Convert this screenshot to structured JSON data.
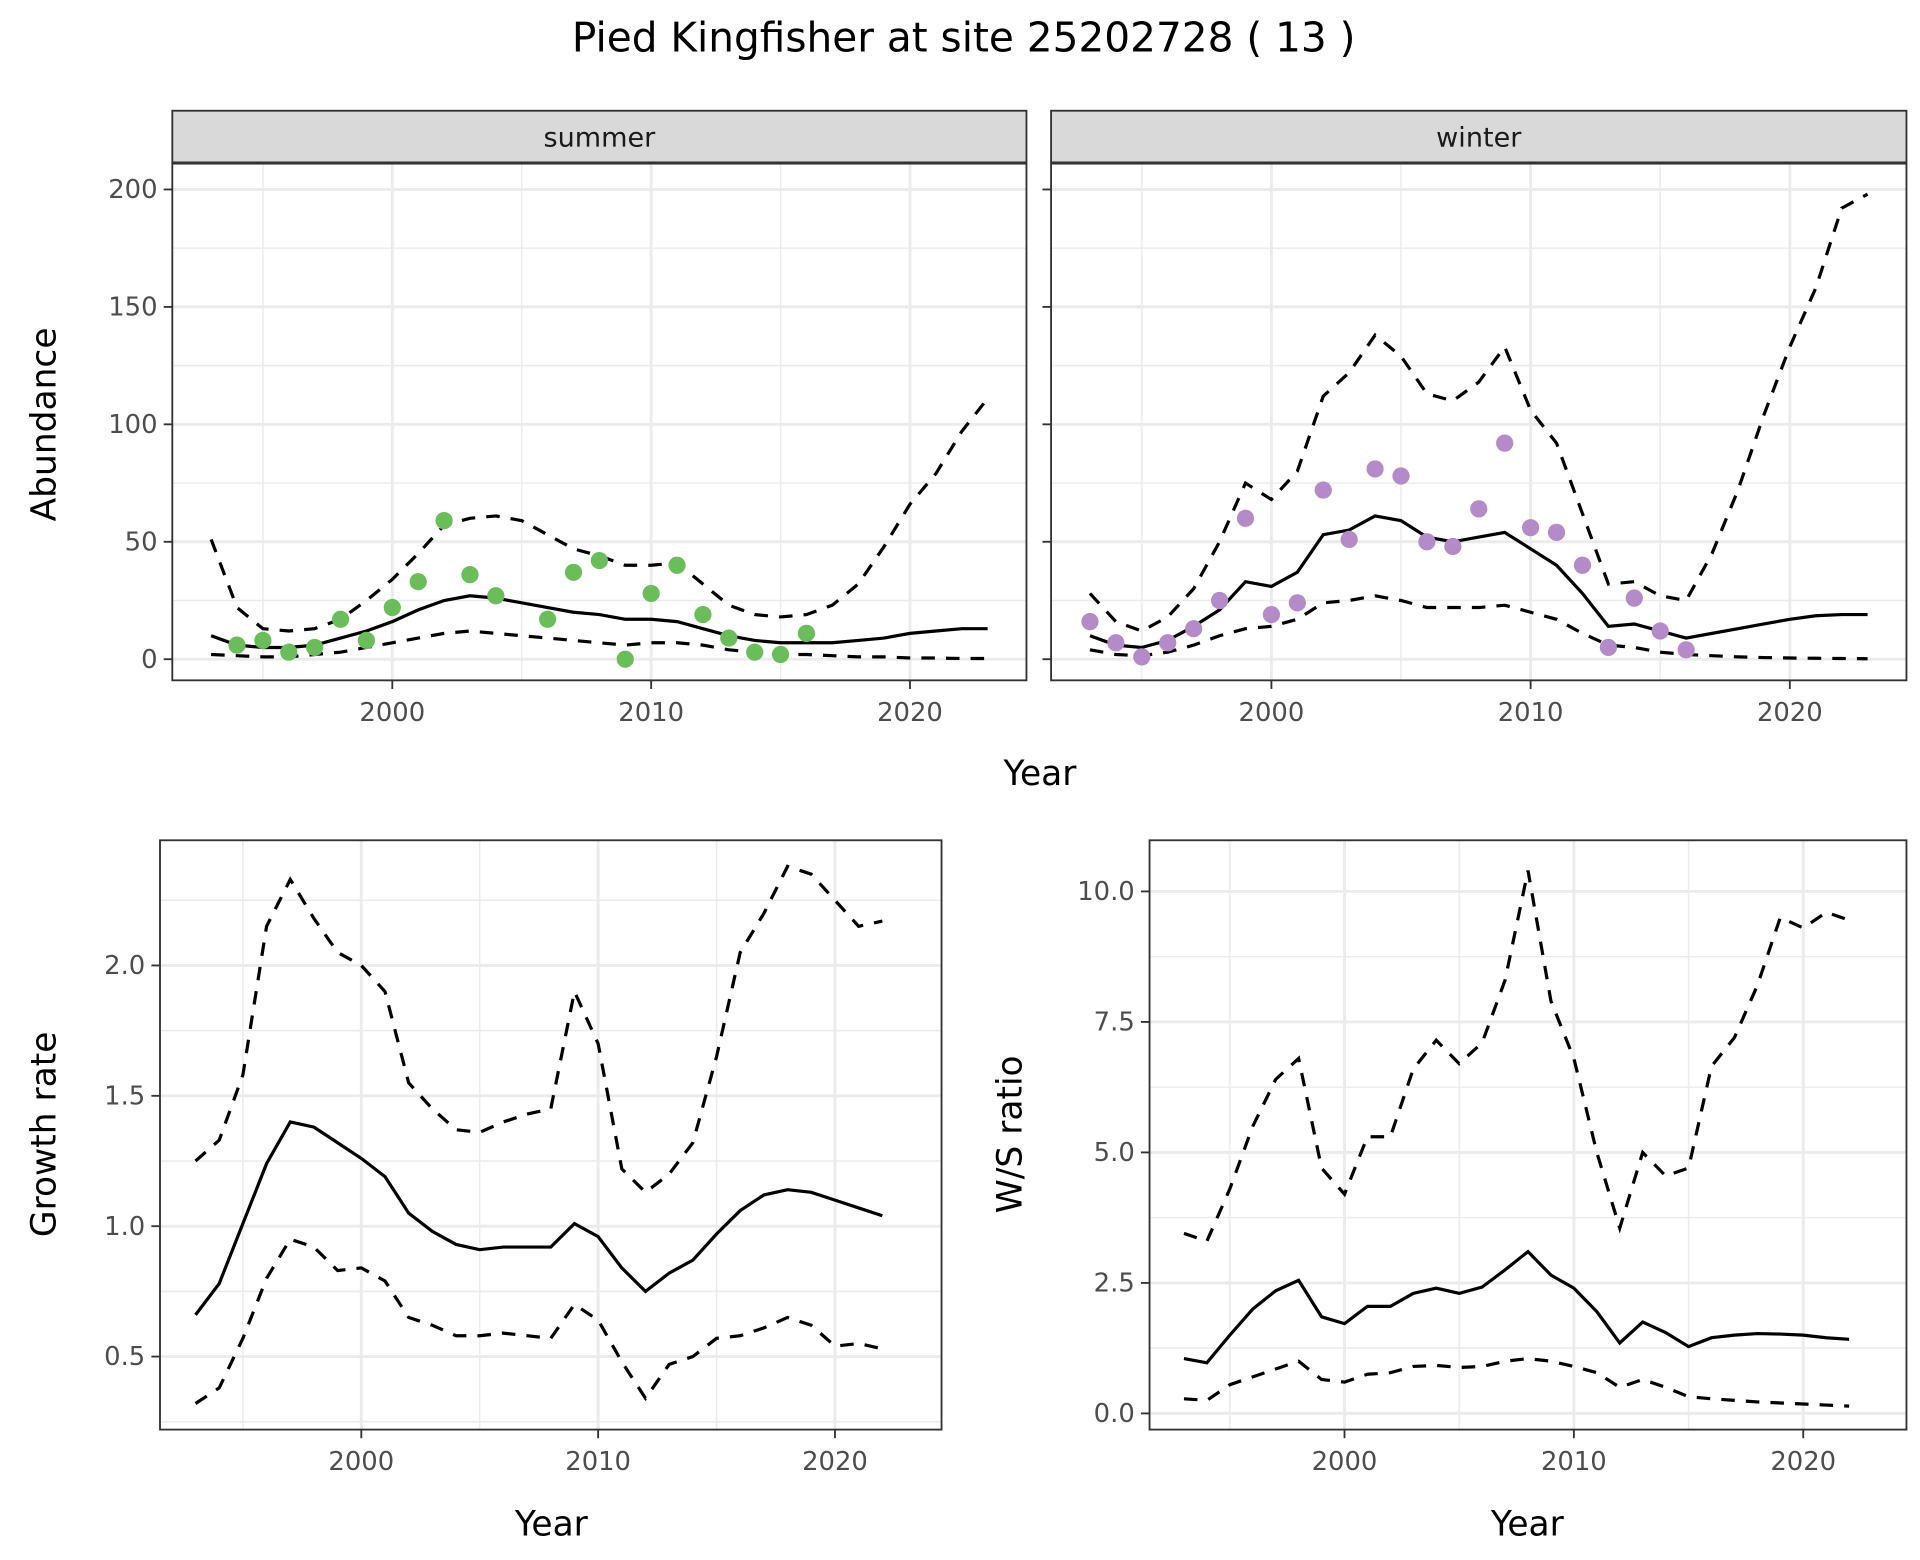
{
  "title": "Pied Kingfisher at site 25202728 ( 13 )",
  "colors": {
    "summer_points": "#6abd5a",
    "winter_points": "#b58ac8",
    "lines": "#000000",
    "strip_bg": "#d9d9d9",
    "grid": "#ebebeb"
  },
  "chart_data": [
    {
      "type": "scatter+line",
      "facet": "summer",
      "xlabel": "Year",
      "ylabel": "Abundance",
      "xlim": [
        1991.5,
        2024.5
      ],
      "ylim": [
        -9,
        211
      ],
      "xticks": [
        2000,
        2010,
        2020
      ],
      "yticks": [
        0,
        50,
        100,
        150,
        200
      ],
      "grid": true,
      "points": {
        "x": [
          1994,
          1995,
          1996,
          1997,
          1998,
          1999,
          2000,
          2001,
          2002,
          2003,
          2004,
          2006,
          2007,
          2008,
          2009,
          2010,
          2011,
          2012,
          2013,
          2014,
          2015,
          2016
        ],
        "y": [
          6,
          8,
          3,
          5,
          17,
          8,
          22,
          33,
          59,
          36,
          27,
          17,
          37,
          42,
          0,
          28,
          40,
          19,
          9,
          3,
          2,
          11
        ]
      },
      "x": [
        1993,
        1994,
        1995,
        1996,
        1997,
        1998,
        1999,
        2000,
        2001,
        2002,
        2003,
        2004,
        2005,
        2006,
        2007,
        2008,
        2009,
        2010,
        2011,
        2012,
        2013,
        2014,
        2015,
        2016,
        2017,
        2018,
        2019,
        2020,
        2021,
        2022,
        2023
      ],
      "mean": [
        10,
        6,
        5,
        5,
        6,
        9,
        12,
        16,
        21,
        25,
        27,
        26,
        24,
        22,
        20,
        19,
        17,
        17,
        16,
        13,
        10,
        8,
        7,
        7,
        7,
        8,
        9,
        11,
        12,
        13,
        13
      ],
      "upper": [
        51,
        22,
        13,
        12,
        13,
        17,
        25,
        34,
        45,
        57,
        60,
        61,
        59,
        53,
        47,
        44,
        40,
        40,
        41,
        32,
        23,
        19,
        18,
        19,
        23,
        32,
        48,
        66,
        79,
        97,
        111
      ],
      "lower": [
        2,
        1.5,
        1,
        1,
        2,
        3,
        5,
        7,
        9,
        11,
        12,
        11,
        10,
        9,
        8,
        7,
        6,
        7,
        7,
        6,
        4,
        3,
        2,
        2,
        1.5,
        1,
        1,
        0.5,
        0.5,
        0.3,
        0.3
      ]
    },
    {
      "type": "scatter+line",
      "facet": "winter",
      "xlabel": "Year",
      "ylabel": "Abundance",
      "xlim": [
        1991.5,
        2024.5
      ],
      "ylim": [
        -9,
        211
      ],
      "xticks": [
        2000,
        2010,
        2020
      ],
      "yticks": [
        0,
        50,
        100,
        150,
        200
      ],
      "grid": true,
      "points": {
        "x": [
          1993,
          1994,
          1995,
          1996,
          1997,
          1998,
          1999,
          2000,
          2001,
          2002,
          2003,
          2004,
          2005,
          2006,
          2007,
          2008,
          2009,
          2010,
          2011,
          2012,
          2013,
          2014,
          2015,
          2016
        ],
        "y": [
          16,
          7,
          1,
          7,
          13,
          25,
          60,
          19,
          24,
          72,
          51,
          81,
          78,
          50,
          48,
          64,
          92,
          56,
          54,
          40,
          5,
          26,
          12,
          4
        ]
      },
      "x": [
        1993,
        1994,
        1995,
        1996,
        1997,
        1998,
        1999,
        2000,
        2001,
        2002,
        2003,
        2004,
        2005,
        2006,
        2007,
        2008,
        2009,
        2010,
        2011,
        2012,
        2013,
        2014,
        2015,
        2016,
        2017,
        2018,
        2019,
        2020,
        2021,
        2022,
        2023
      ],
      "mean": [
        10,
        6,
        5,
        8,
        14,
        21,
        33,
        31,
        37,
        53,
        55,
        61,
        59,
        52,
        50,
        52,
        54,
        47,
        40,
        28,
        14,
        15,
        12,
        9,
        11,
        13,
        15,
        17,
        18.5,
        19,
        19
      ],
      "upper": [
        28,
        16,
        12,
        18,
        30,
        50,
        75,
        68,
        80,
        112,
        122,
        138,
        129,
        113,
        110,
        118,
        133,
        106,
        92,
        62,
        32,
        33,
        27,
        25,
        45,
        72,
        104,
        133,
        158,
        192,
        198
      ],
      "lower": [
        4,
        2,
        1.5,
        3,
        6,
        10,
        13,
        14,
        17,
        24,
        25,
        27,
        25,
        22,
        22,
        22,
        23,
        20,
        17,
        11,
        6,
        5,
        3,
        2,
        1.5,
        1,
        0.7,
        0.5,
        0.4,
        0.3,
        0.2
      ]
    },
    {
      "type": "line",
      "xlabel": "Year",
      "ylabel": "Growth rate",
      "xlim": [
        1991.5,
        2024.5
      ],
      "ylim": [
        0.22,
        2.48
      ],
      "xticks": [
        2000,
        2010,
        2020
      ],
      "yticks": [
        0.5,
        1.0,
        1.5,
        2.0
      ],
      "ytick_labels": [
        "0.5",
        "1.0",
        "1.5",
        "2.0"
      ],
      "grid": true,
      "x": [
        1993,
        1994,
        1995,
        1996,
        1997,
        1998,
        1999,
        2000,
        2001,
        2002,
        2003,
        2004,
        2005,
        2006,
        2007,
        2008,
        2009,
        2010,
        2011,
        2012,
        2013,
        2014,
        2015,
        2016,
        2017,
        2018,
        2019,
        2020,
        2021,
        2022
      ],
      "mean": [
        0.66,
        0.78,
        1.01,
        1.24,
        1.4,
        1.38,
        1.32,
        1.26,
        1.19,
        1.05,
        0.98,
        0.93,
        0.91,
        0.92,
        0.92,
        0.92,
        1.01,
        0.96,
        0.84,
        0.75,
        0.82,
        0.87,
        0.97,
        1.06,
        1.12,
        1.14,
        1.13,
        1.1,
        1.07,
        1.04
      ],
      "upper": [
        1.25,
        1.33,
        1.58,
        2.15,
        2.33,
        2.18,
        2.05,
        2.0,
        1.9,
        1.55,
        1.45,
        1.37,
        1.36,
        1.4,
        1.43,
        1.45,
        1.9,
        1.7,
        1.22,
        1.13,
        1.2,
        1.32,
        1.65,
        2.05,
        2.2,
        2.38,
        2.35,
        2.25,
        2.15,
        2.17
      ],
      "lower": [
        0.32,
        0.38,
        0.57,
        0.8,
        0.95,
        0.92,
        0.83,
        0.84,
        0.79,
        0.65,
        0.62,
        0.58,
        0.58,
        0.59,
        0.58,
        0.57,
        0.7,
        0.64,
        0.48,
        0.34,
        0.47,
        0.5,
        0.57,
        0.58,
        0.61,
        0.65,
        0.62,
        0.54,
        0.55,
        0.53
      ]
    },
    {
      "type": "line",
      "xlabel": "Year",
      "ylabel": "W/S ratio",
      "xlim": [
        1991.5,
        2024.5
      ],
      "ylim": [
        -0.31,
        10.98
      ],
      "xticks": [
        2000,
        2010,
        2020
      ],
      "yticks": [
        0,
        2.5,
        5,
        7.5,
        10
      ],
      "ytick_labels": [
        "0.0",
        "2.5",
        "5.0",
        "7.5",
        "10.0"
      ],
      "grid": true,
      "x": [
        1993,
        1994,
        1995,
        1996,
        1997,
        1998,
        1999,
        2000,
        2001,
        2002,
        2003,
        2004,
        2005,
        2006,
        2007,
        2008,
        2009,
        2010,
        2011,
        2012,
        2013,
        2014,
        2015,
        2016,
        2017,
        2018,
        2019,
        2020,
        2021,
        2022
      ],
      "mean": [
        1.05,
        0.97,
        1.5,
        2.0,
        2.35,
        2.55,
        1.85,
        1.72,
        2.05,
        2.05,
        2.3,
        2.4,
        2.3,
        2.42,
        2.75,
        3.1,
        2.65,
        2.4,
        1.95,
        1.35,
        1.75,
        1.55,
        1.28,
        1.45,
        1.5,
        1.53,
        1.52,
        1.5,
        1.45,
        1.42
      ],
      "upper": [
        3.45,
        3.3,
        4.3,
        5.5,
        6.4,
        6.8,
        4.7,
        4.2,
        5.3,
        5.3,
        6.6,
        7.15,
        6.7,
        7.1,
        8.3,
        10.4,
        7.9,
        6.8,
        5.0,
        3.55,
        5.0,
        4.55,
        4.7,
        6.65,
        7.2,
        8.2,
        9.5,
        9.3,
        9.6,
        9.45
      ],
      "lower": [
        0.28,
        0.25,
        0.55,
        0.7,
        0.85,
        1.0,
        0.65,
        0.6,
        0.75,
        0.78,
        0.9,
        0.92,
        0.88,
        0.9,
        1.0,
        1.05,
        1.0,
        0.9,
        0.78,
        0.5,
        0.65,
        0.5,
        0.32,
        0.28,
        0.25,
        0.22,
        0.2,
        0.18,
        0.16,
        0.14
      ]
    }
  ],
  "shared_xlabel_top": "Year"
}
